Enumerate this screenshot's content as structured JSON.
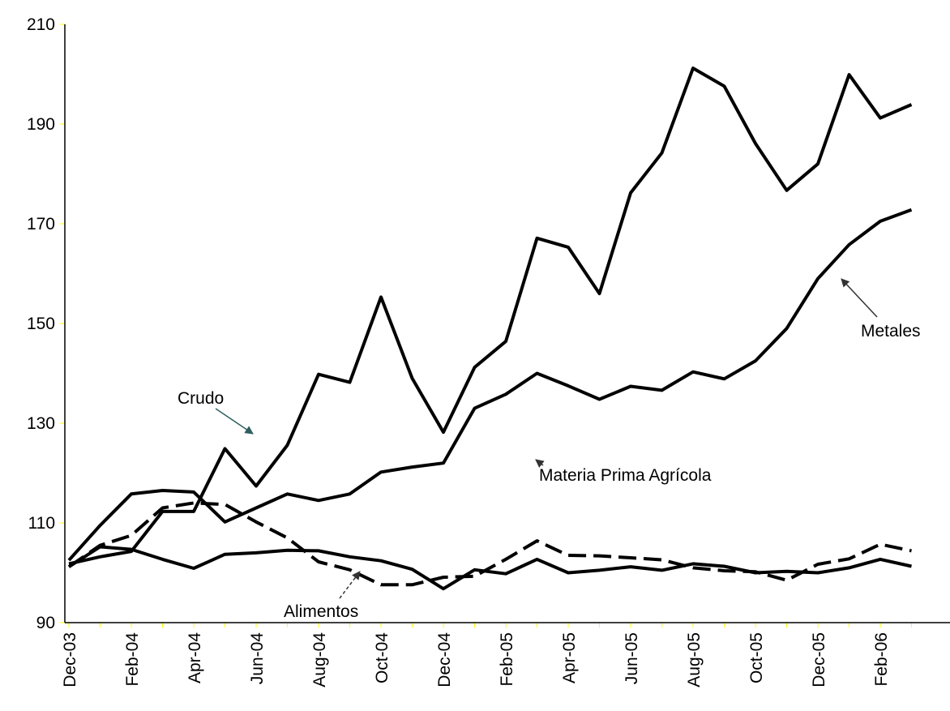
{
  "chart_data": {
    "type": "line",
    "title": "",
    "xlabel": "",
    "ylabel": "",
    "ylim": [
      90,
      210
    ],
    "yticks": [
      90,
      110,
      130,
      150,
      170,
      190,
      210
    ],
    "grid": false,
    "legend": "none",
    "x": [
      "Dec-03",
      "Jan-04",
      "Feb-04",
      "Mar-04",
      "Apr-04",
      "May-04",
      "Jun-04",
      "Jul-04",
      "Aug-04",
      "Sep-04",
      "Oct-04",
      "Nov-04",
      "Dec-04",
      "Jan-05",
      "Feb-05",
      "Mar-05",
      "Apr-05",
      "May-05",
      "Jun-05",
      "Jul-05",
      "Aug-05",
      "Sep-05",
      "Oct-05",
      "Nov-05",
      "Dec-05",
      "Jan-06",
      "Feb-06",
      "Mar-06"
    ],
    "xtick_labels": [
      "Dec-03",
      "Feb-04",
      "Apr-04",
      "Jun-04",
      "Aug-04",
      "Oct-04",
      "Dec-04",
      "Feb-05",
      "Apr-05",
      "Jun-05",
      "Aug-05",
      "Oct-05",
      "Dec-05",
      "Feb-06"
    ],
    "series": [
      {
        "name": "Crudo",
        "dashed": false,
        "values": [
          102.5,
          109.5,
          115.8,
          116.5,
          116.2,
          110.2,
          113.0,
          115.8,
          114.5,
          115.8,
          120.2,
          121.2,
          122.0,
          133.0,
          135.8,
          140.0,
          137.5,
          134.8,
          137.4,
          136.6,
          140.3,
          138.9,
          142.5,
          149.0,
          159.0,
          165.8,
          170.5,
          172.8
        ]
      },
      {
        "name": "Metales",
        "dashed": false,
        "values": [
          101.8,
          103.2,
          104.3,
          112.3,
          112.3,
          124.9,
          117.4,
          125.6,
          139.8,
          138.2,
          155.3,
          139.0,
          128.2,
          141.2,
          146.4,
          167.1,
          165.3,
          156.0,
          176.2,
          184.2,
          201.2,
          197.6,
          186.1,
          176.7,
          182.0,
          199.9,
          191.2,
          193.9
        ]
      },
      {
        "name": "Materia Prima Agrícola",
        "dashed": false,
        "values": [
          101.2,
          105.2,
          104.7,
          102.7,
          100.9,
          103.7,
          104.0,
          104.5,
          104.4,
          103.2,
          102.4,
          100.7,
          96.8,
          100.6,
          99.8,
          102.7,
          100.0,
          100.5,
          101.2,
          100.5,
          101.8,
          101.3,
          100.0,
          100.3,
          100.0,
          101.0,
          102.7,
          101.3
        ]
      },
      {
        "name": "Alimentos",
        "dashed": true,
        "values": [
          101.2,
          105.5,
          107.5,
          113.0,
          114.0,
          113.7,
          110.2,
          107.0,
          102.2,
          100.6,
          97.6,
          97.6,
          99.1,
          99.3,
          102.7,
          106.4,
          103.5,
          103.4,
          103.0,
          102.6,
          101.0,
          100.4,
          100.2,
          98.5,
          101.7,
          102.8,
          105.7,
          104.4
        ]
      }
    ],
    "annotations": [
      {
        "text": "Crudo",
        "arrow_style": "solid"
      },
      {
        "text": "Metales",
        "arrow_style": "solid"
      },
      {
        "text": "Materia Prima Agrícola",
        "arrow_style": "solid"
      },
      {
        "text": "Alimentos",
        "arrow_style": "dashed"
      }
    ],
    "colors": {
      "line": "#000000",
      "axis": "#000000",
      "tick": "#ffff00",
      "arrow": "#2f5f5f"
    }
  }
}
